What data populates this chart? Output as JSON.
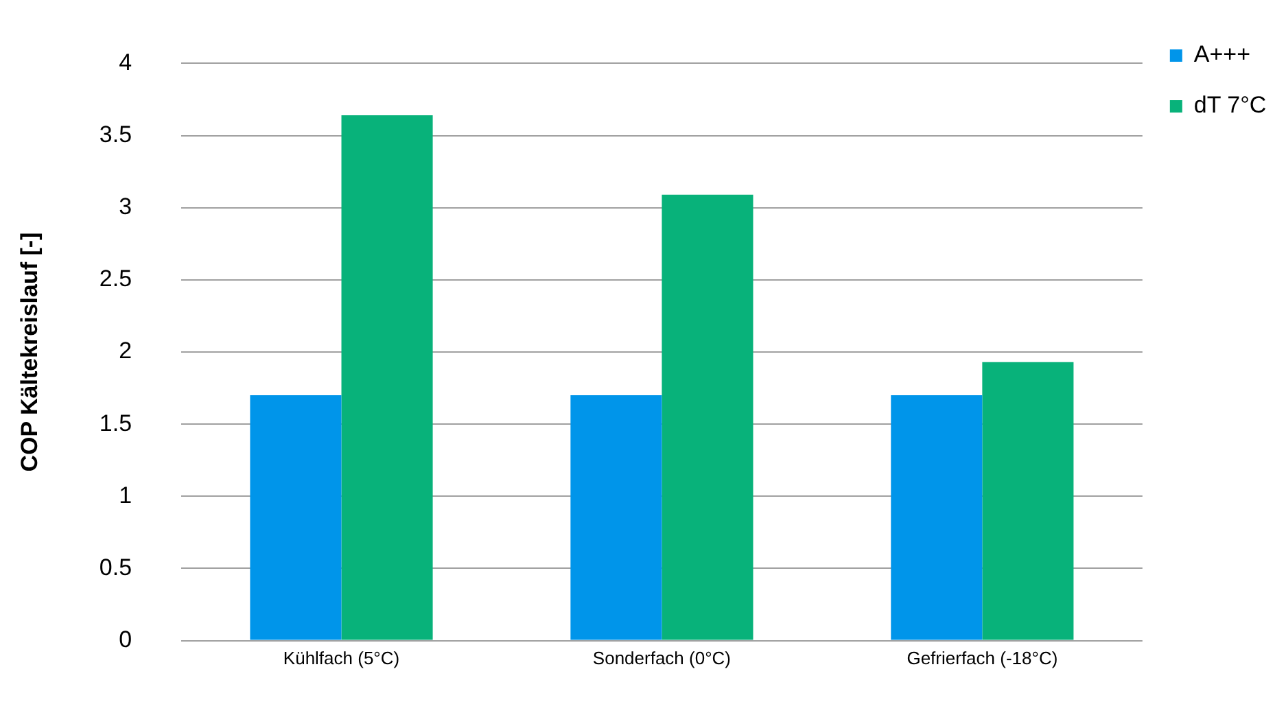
{
  "chart_data": {
    "type": "bar",
    "ylabel": "COP Kältekreislauf [-]",
    "categories": [
      "Kühlfach (5°C)",
      "Sonderfach (0°C)",
      "Gefrierfach (-18°C)"
    ],
    "series": [
      {
        "name": "A+++",
        "color": "#0095ea",
        "values": [
          1.7,
          1.7,
          1.7
        ]
      },
      {
        "name": "dT 7°C",
        "color": "#08b27a",
        "values": [
          3.64,
          3.09,
          1.93
        ]
      }
    ],
    "ylim": [
      0,
      4
    ],
    "yticks": [
      0,
      0.5,
      1,
      1.5,
      2,
      2.5,
      3,
      3.5,
      4
    ],
    "grid": "y",
    "legend": "top right"
  }
}
